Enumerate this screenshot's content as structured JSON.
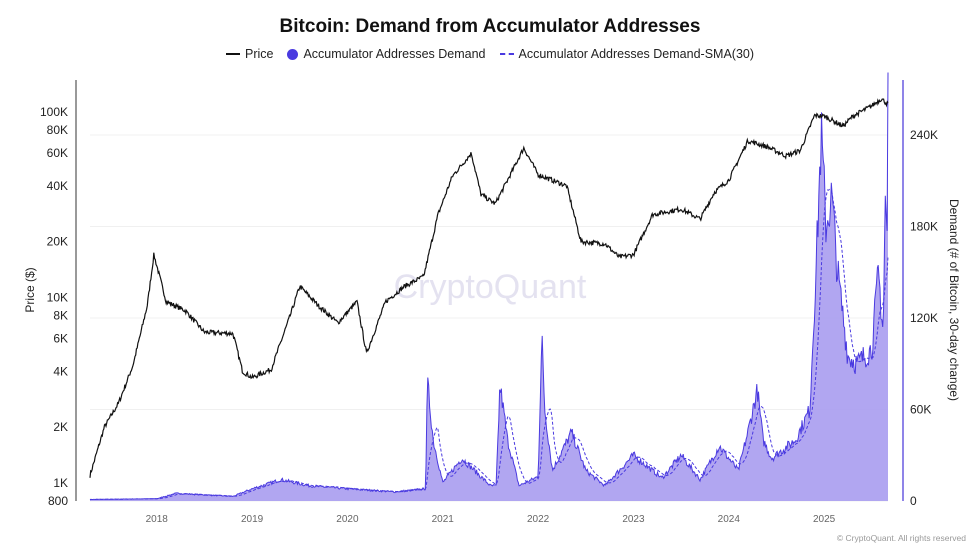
{
  "chart_data": {
    "type": "line",
    "title": "Bitcoin: Demand from Accumulator Addresses",
    "legend": {
      "placement": "top",
      "entries": [
        "Price",
        "Accumulator Addresses Demand",
        "Accumulator Addresses Demand-SMA(30)"
      ]
    },
    "xlabel": "",
    "x_ticks": [
      "2018",
      "2019",
      "2020",
      "2021",
      "2022",
      "2023",
      "2024",
      "2025"
    ],
    "xlim": [
      2017.3,
      2025.67
    ],
    "y_left": {
      "label": "Price ($)",
      "scale": "log",
      "lim": [
        800,
        130000
      ],
      "ticks": [
        800,
        1000,
        2000,
        4000,
        6000,
        8000,
        10000,
        20000,
        40000,
        60000,
        80000,
        100000
      ],
      "tick_labels": [
        "800",
        "1K",
        "2K",
        "4K",
        "6K",
        "8K",
        "10K",
        "20K",
        "40K",
        "60K",
        "80K",
        "100K"
      ]
    },
    "y_right": {
      "label": "Demand (# of Bitcoin, 30-day change)",
      "scale": "linear",
      "lim": [
        0,
        280000
      ],
      "ticks": [
        0,
        60000,
        120000,
        180000,
        240000
      ],
      "tick_labels": [
        "0",
        "60K",
        "120K",
        "180K",
        "240K"
      ]
    },
    "grid": true,
    "watermark": "CryptoQuant",
    "colors": {
      "price": "#111111",
      "demand_line": "#4a3ae0",
      "demand_fill": "#a89cf0",
      "sma": "#4a3ae0"
    },
    "series": [
      {
        "name": "Price",
        "axis": "left",
        "x": [
          2017.3,
          2017.45,
          2017.6,
          2017.75,
          2017.9,
          2017.97,
          2018.1,
          2018.3,
          2018.5,
          2018.8,
          2018.9,
          2019.0,
          2019.2,
          2019.4,
          2019.5,
          2019.7,
          2019.9,
          2020.1,
          2020.2,
          2020.4,
          2020.6,
          2020.8,
          2020.95,
          2021.1,
          2021.3,
          2021.4,
          2021.55,
          2021.7,
          2021.85,
          2022.0,
          2022.3,
          2022.45,
          2022.7,
          2022.85,
          2023.0,
          2023.2,
          2023.5,
          2023.7,
          2023.85,
          2024.0,
          2024.2,
          2024.4,
          2024.6,
          2024.75,
          2024.9,
          2025.0,
          2025.2,
          2025.3,
          2025.5,
          2025.6,
          2025.67
        ],
        "values": [
          1100,
          2000,
          2700,
          4300,
          9000,
          17000,
          9500,
          8500,
          6500,
          6400,
          4000,
          3700,
          4100,
          8000,
          11500,
          9000,
          7300,
          9500,
          5000,
          9500,
          11500,
          13000,
          28000,
          45000,
          60000,
          36000,
          32000,
          45000,
          64000,
          46000,
          40000,
          20000,
          19500,
          16500,
          17000,
          28000,
          30000,
          26500,
          37000,
          43000,
          70000,
          65000,
          58000,
          62000,
          96000,
          95000,
          84000,
          95000,
          108000,
          118000,
          110000
        ]
      },
      {
        "name": "Accumulator Addresses Demand",
        "axis": "right",
        "x": [
          2017.3,
          2018.0,
          2018.2,
          2018.8,
          2019.0,
          2019.3,
          2019.6,
          2020.0,
          2020.5,
          2020.82,
          2020.84,
          2020.9,
          2021.0,
          2021.2,
          2021.5,
          2021.56,
          2021.6,
          2021.68,
          2021.8,
          2022.0,
          2022.04,
          2022.07,
          2022.15,
          2022.35,
          2022.5,
          2022.7,
          2023.0,
          2023.3,
          2023.5,
          2023.7,
          2023.9,
          2024.1,
          2024.2,
          2024.3,
          2024.36,
          2024.45,
          2024.7,
          2024.85,
          2024.92,
          2024.97,
          2025.02,
          2025.08,
          2025.14,
          2025.25,
          2025.35,
          2025.5,
          2025.57,
          2025.62,
          2025.64,
          2025.66,
          2025.67
        ],
        "values": [
          1000,
          1500,
          5000,
          3000,
          8000,
          14000,
          10000,
          8000,
          6000,
          8000,
          78000,
          40000,
          12000,
          28000,
          10000,
          10000,
          76000,
          40000,
          10000,
          16000,
          106000,
          60000,
          20000,
          45000,
          20000,
          10000,
          30000,
          15000,
          30000,
          14000,
          36000,
          20000,
          45000,
          73000,
          40000,
          28000,
          40000,
          60000,
          160000,
          240000,
          180000,
          200000,
          150000,
          95000,
          90000,
          100000,
          150000,
          110000,
          200000,
          170000,
          270000
        ]
      }
    ]
  },
  "footer": {
    "copyright": "© CryptoQuant. All rights reserved"
  }
}
